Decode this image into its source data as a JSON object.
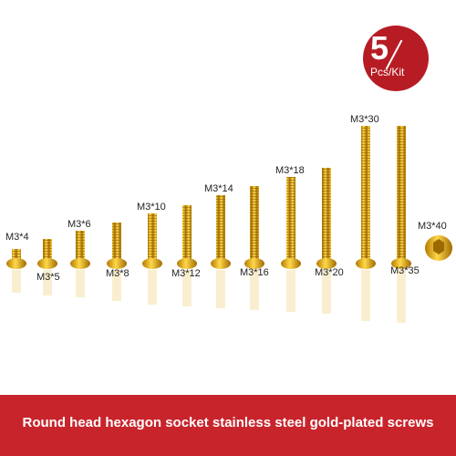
{
  "badge": {
    "count": "5",
    "unit": "Pcs/Kit"
  },
  "screws": [
    {
      "label": "M3*4"
    },
    {
      "label": "M3*5"
    },
    {
      "label": "M3*6"
    },
    {
      "label": "M3*8"
    },
    {
      "label": "M3*10"
    },
    {
      "label": "M3*12"
    },
    {
      "label": "M3*14"
    },
    {
      "label": "M3*16"
    },
    {
      "label": "M3*18"
    },
    {
      "label": "M3*20"
    },
    {
      "label": "M3*30"
    },
    {
      "label": "M3*35"
    },
    {
      "label": "M3*40"
    }
  ],
  "banner": {
    "text": "Round head hexagon socket stainless steel gold-plated screws"
  },
  "colors": {
    "gold": "#e0a800",
    "banner": "#c8242c",
    "badge": "#b71c24"
  }
}
